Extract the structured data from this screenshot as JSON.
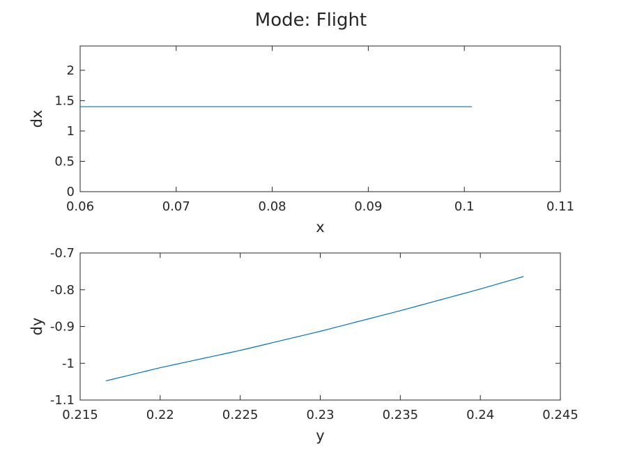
{
  "figure_title": "Mode: Flight",
  "colors": {
    "series": "#0072BD",
    "axes": "#262626",
    "background": "#ffffff"
  },
  "chart_data": [
    {
      "type": "line",
      "xlabel": "x",
      "ylabel": "dx",
      "xlim": [
        0.06,
        0.11
      ],
      "ylim": [
        0,
        2.4
      ],
      "xticks": [
        0.06,
        0.07,
        0.08,
        0.09,
        0.1,
        0.11
      ],
      "xtick_labels": [
        "0.06",
        "0.07",
        "0.08",
        "0.09",
        "0.1",
        "0.11"
      ],
      "yticks": [
        0,
        0.5,
        1,
        1.5,
        2
      ],
      "ytick_labels": [
        "0",
        "0.5",
        "1",
        "1.5",
        "2"
      ],
      "grid": false,
      "series": [
        {
          "x": [
            0.06,
            0.07,
            0.08,
            0.09,
            0.1008
          ],
          "y": [
            1.4,
            1.4,
            1.4,
            1.4,
            1.4
          ]
        }
      ]
    },
    {
      "type": "line",
      "xlabel": "y",
      "ylabel": "dy",
      "xlim": [
        0.215,
        0.245
      ],
      "ylim": [
        -1.1,
        -0.7
      ],
      "xticks": [
        0.215,
        0.22,
        0.225,
        0.23,
        0.235,
        0.24,
        0.245
      ],
      "xtick_labels": [
        "0.215",
        "0.22",
        "0.225",
        "0.23",
        "0.235",
        "0.24",
        "0.245"
      ],
      "yticks": [
        -1.1,
        -1,
        -0.9,
        -0.8,
        -0.7
      ],
      "ytick_labels": [
        "-1.1",
        "-1",
        "-0.9",
        "-0.8",
        "-0.7"
      ],
      "grid": false,
      "series": [
        {
          "x": [
            0.2166,
            0.22,
            0.225,
            0.23,
            0.235,
            0.24,
            0.2427
          ],
          "y": [
            -1.048,
            -1.012,
            -0.965,
            -0.913,
            -0.857,
            -0.798,
            -0.764
          ]
        }
      ]
    }
  ]
}
